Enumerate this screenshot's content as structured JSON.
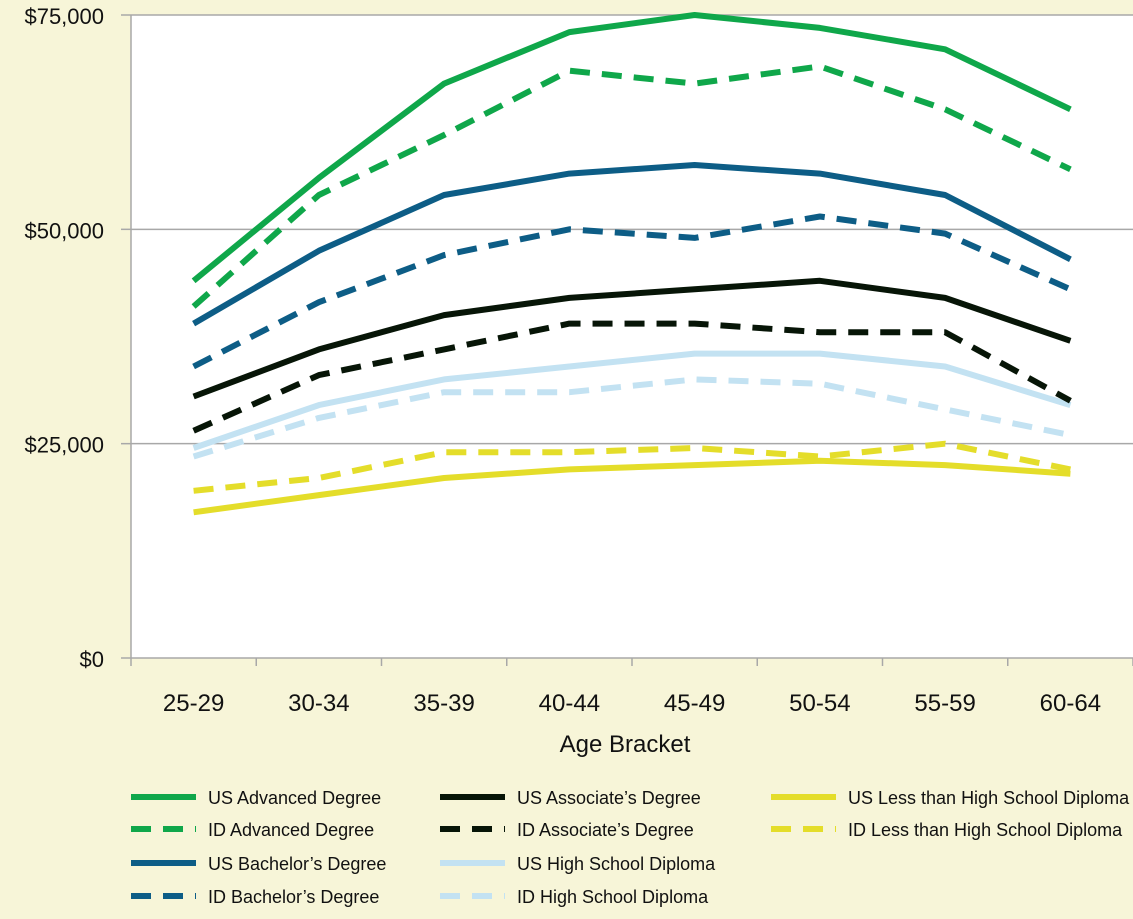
{
  "chart_data": {
    "type": "line",
    "title": "",
    "xlabel": "Age Bracket",
    "ylabel": "",
    "categories": [
      "25-29",
      "30-34",
      "35-39",
      "40-44",
      "45-49",
      "50-54",
      "55-59",
      "60-64"
    ],
    "ylim": [
      0,
      75000
    ],
    "yticks": [
      0,
      25000,
      50000,
      75000
    ],
    "ytick_labels": [
      "$0",
      "$25,000",
      "$50,000",
      "$75,000"
    ],
    "grid": "horizontal",
    "legend_position": "bottom",
    "series": [
      {
        "name": "US Advanced Degree",
        "color": "#0fa74a",
        "dashed": false,
        "values": [
          44000,
          56000,
          67000,
          73000,
          75000,
          73500,
          71000,
          64000
        ]
      },
      {
        "name": "ID Advanced Degree",
        "color": "#0fa74a",
        "dashed": true,
        "values": [
          41000,
          54000,
          61000,
          68500,
          67000,
          69000,
          64000,
          57000
        ]
      },
      {
        "name": "US Bachelor’s Degree",
        "color": "#0d5d86",
        "dashed": false,
        "values": [
          39000,
          47500,
          54000,
          56500,
          57500,
          56500,
          54000,
          46500
        ]
      },
      {
        "name": "ID Bachelor’s Degree",
        "color": "#0d5d86",
        "dashed": true,
        "values": [
          34000,
          41500,
          47000,
          50000,
          49000,
          51500,
          49500,
          43000
        ]
      },
      {
        "name": "US Associate’s Degree",
        "color": "#071507",
        "dashed": false,
        "values": [
          30500,
          36000,
          40000,
          42000,
          43000,
          44000,
          42000,
          37000
        ]
      },
      {
        "name": "ID Associate’s Degree",
        "color": "#071507",
        "dashed": true,
        "values": [
          26500,
          33000,
          36000,
          39000,
          39000,
          38000,
          38000,
          30000
        ]
      },
      {
        "name": "US High School Diploma",
        "color": "#c3e2f2",
        "dashed": false,
        "values": [
          24500,
          29500,
          32500,
          34000,
          35500,
          35500,
          34000,
          29500
        ]
      },
      {
        "name": "ID High School Diploma",
        "color": "#c3e2f2",
        "dashed": true,
        "values": [
          23500,
          28000,
          31000,
          31000,
          32500,
          32000,
          29000,
          26000
        ]
      },
      {
        "name": "US Less than High School Diploma",
        "color": "#e4dd2a",
        "dashed": false,
        "values": [
          17000,
          19000,
          21000,
          22000,
          22500,
          23000,
          22500,
          21500
        ]
      },
      {
        "name": "ID Less than High School Diploma",
        "color": "#e4dd2a",
        "dashed": true,
        "values": [
          19500,
          21000,
          24000,
          24000,
          24500,
          23500,
          25000,
          22000
        ]
      }
    ],
    "legend_columns": [
      [
        "US Advanced Degree",
        "ID Advanced Degree",
        "US Bachelor’s Degree",
        "ID Bachelor’s Degree"
      ],
      [
        "US Associate’s Degree",
        "ID Associate’s Degree",
        "US High School Diploma",
        "ID High School Diploma"
      ],
      [
        "US Less than High School Diploma",
        "ID Less than High School Diploma"
      ]
    ]
  }
}
